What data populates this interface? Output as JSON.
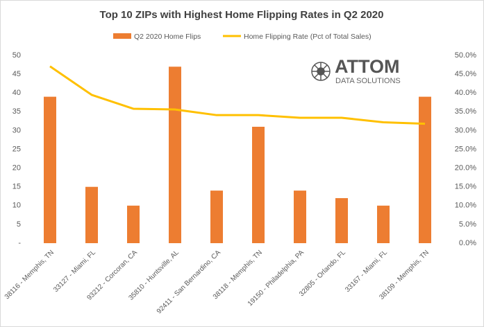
{
  "chart_data": {
    "type": "bar-line",
    "title": "Top 10 ZIPs with Highest Home Flipping Rates in Q2 2020",
    "categories": [
      "38116 - Memphis, TN",
      "33127 - Miami, FL",
      "93212 - Corcoran, CA",
      "35810 - Huntsville, AL",
      "92411 - San Bernardino, CA",
      "38118 - Memphis, TN",
      "19150 - Philadelphia, PA",
      "32805 - Orlando, FL",
      "33167 - Miami, FL",
      "38109 - Memphis, TN"
    ],
    "series": [
      {
        "name": "Q2 2020 Home Flips",
        "type": "bar",
        "color": "#ed7d31",
        "values": [
          39,
          15,
          10,
          47,
          14,
          31,
          14,
          12,
          10,
          39
        ]
      },
      {
        "name": "Home Flipping Rate (Pct of Total Sales)",
        "type": "line",
        "axis": "y2",
        "color": "#ffc000",
        "values": [
          47.1,
          39.5,
          35.8,
          35.6,
          34.1,
          34.1,
          33.4,
          33.4,
          32.2,
          31.8
        ]
      }
    ],
    "ylim": [
      0,
      50
    ],
    "yticks": [
      {
        "value": 0,
        "label": "-"
      },
      5,
      10,
      15,
      20,
      25,
      30,
      35,
      40,
      45,
      50
    ],
    "y2lim": [
      0,
      50
    ],
    "y2ticks": [
      {
        "value": 0,
        "label": "0.0%"
      },
      {
        "value": 5,
        "label": "5.0%"
      },
      {
        "value": 10,
        "label": "10.0%"
      },
      {
        "value": 15,
        "label": "15.0%"
      },
      {
        "value": 20,
        "label": "20.0%"
      },
      {
        "value": 25,
        "label": "25.0%"
      },
      {
        "value": 30,
        "label": "30.0%"
      },
      {
        "value": 35,
        "label": "35.0%"
      },
      {
        "value": 40,
        "label": "40.0%"
      },
      {
        "value": 45,
        "label": "45.0%"
      },
      {
        "value": 50,
        "label": "50.0%"
      }
    ],
    "grid": false,
    "legend": "top",
    "logo": {
      "name": "ATTOM",
      "tagline": "DATA SOLUTIONS"
    }
  }
}
